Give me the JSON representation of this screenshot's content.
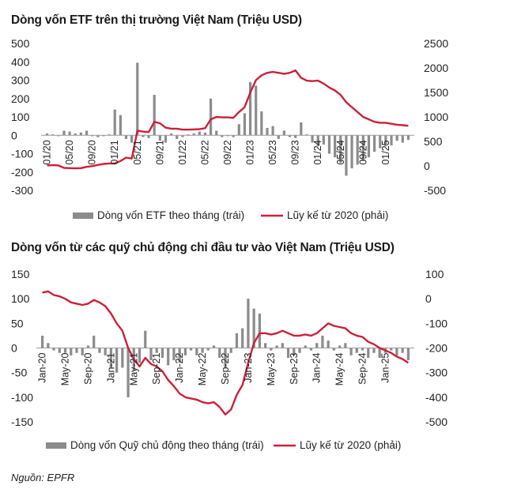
{
  "source": "Nguồn: EPFR",
  "chart_data": [
    {
      "type": "bar",
      "title": "Dòng vốn ETF trên thị trường Việt Nam (Triệu USD)",
      "ylim": [
        -300,
        500
      ],
      "y_ticks": [
        500,
        400,
        300,
        200,
        100,
        0,
        -100,
        -200,
        -300
      ],
      "y2lim": [
        -500,
        2500
      ],
      "y2_ticks": [
        2500,
        2000,
        1500,
        1000,
        500,
        0,
        -500
      ],
      "x_tick_labels": [
        "01/20",
        "05/20",
        "09/20",
        "01/21",
        "05/21",
        "09/21",
        "01/22",
        "05/22",
        "09/22",
        "01/23",
        "05/23",
        "09/23",
        "01/24",
        "05/24",
        "09/24",
        "01/25"
      ],
      "series": [
        {
          "name": "Dòng vốn ETF theo tháng (trái)",
          "axis": "left",
          "values": [
            10,
            5,
            -5,
            25,
            20,
            10,
            15,
            25,
            -5,
            -10,
            -5,
            5,
            140,
            110,
            -20,
            -40,
            395,
            -10,
            -15,
            220,
            -30,
            -40,
            10,
            -20,
            -10,
            5,
            10,
            20,
            15,
            200,
            25,
            -10,
            -5,
            -10,
            60,
            120,
            290,
            270,
            130,
            40,
            50,
            -20,
            25,
            -10,
            -15,
            70,
            5,
            -40,
            -60,
            -50,
            -100,
            -120,
            -150,
            -220,
            -180,
            -160,
            -140,
            -120,
            -90,
            -70,
            -60,
            -55,
            -30,
            -40,
            -25
          ]
        },
        {
          "name": "Lũy kế từ 2020 (phải)",
          "axis": "right",
          "values": [
            10,
            15,
            10,
            -40,
            -45,
            -50,
            -45,
            -20,
            -5,
            20,
            40,
            50,
            50,
            100,
            170,
            150,
            720,
            700,
            690,
            900,
            870,
            780,
            760,
            760,
            740,
            740,
            745,
            750,
            770,
            950,
            1000,
            990,
            990,
            980,
            1100,
            1200,
            1500,
            1750,
            1850,
            1900,
            1920,
            1900,
            1880,
            1900,
            1950,
            1800,
            1740,
            1730,
            1740,
            1680,
            1600,
            1540,
            1450,
            1300,
            1200,
            1100,
            1000,
            950,
            900,
            880,
            880,
            860,
            840,
            830,
            820
          ]
        }
      ]
    },
    {
      "type": "bar",
      "title": "Dòng vốn từ các quỹ chủ động chỉ đầu tư vào Việt Nam (Triệu USD)",
      "ylim": [
        -150,
        150
      ],
      "y_ticks": [
        150,
        100,
        50,
        0,
        -50,
        -100,
        -150
      ],
      "y2lim": [
        -500,
        100
      ],
      "y2_ticks": [
        100,
        0,
        -100,
        -200,
        -300,
        -400,
        -500
      ],
      "x_tick_labels": [
        "Jan-20",
        "May-20",
        "Sep-20",
        "Jan-21",
        "May-21",
        "Sep-21",
        "Jan-22",
        "May-22",
        "Sep-22",
        "Jan-23",
        "May-23",
        "Sep-23",
        "Jan-24",
        "May-24",
        "Sep-24",
        "Jan-25"
      ],
      "series": [
        {
          "name": "Dòng vốn Quỹ chủ động theo tháng (trái)",
          "axis": "left",
          "values": [
            25,
            10,
            -5,
            -10,
            -10,
            -15,
            -10,
            -15,
            5,
            25,
            -10,
            -15,
            -40,
            -50,
            -40,
            -100,
            -45,
            -30,
            35,
            -25,
            -10,
            -20,
            -35,
            -25,
            -30,
            -15,
            -5,
            -15,
            -10,
            -5,
            5,
            -20,
            -40,
            -10,
            30,
            40,
            100,
            80,
            70,
            10,
            -5,
            5,
            10,
            -20,
            -15,
            -10,
            5,
            -5,
            10,
            25,
            15,
            -5,
            5,
            10,
            -15,
            -10,
            -5,
            -20,
            -10,
            -20,
            -10,
            -5,
            -15,
            -10,
            -25
          ]
        },
        {
          "name": "Lũy kế từ 2020 (phải)",
          "axis": "right",
          "values": [
            25,
            30,
            15,
            10,
            0,
            -15,
            -20,
            -25,
            -20,
            -5,
            -15,
            -30,
            -60,
            -100,
            -130,
            -200,
            -245,
            -275,
            -240,
            -265,
            -275,
            -295,
            -330,
            -355,
            -385,
            -400,
            -405,
            -410,
            -420,
            -425,
            -420,
            -440,
            -470,
            -450,
            -390,
            -350,
            -260,
            -180,
            -140,
            -140,
            -145,
            -140,
            -130,
            -140,
            -150,
            -150,
            -145,
            -150,
            -140,
            -120,
            -100,
            -110,
            -115,
            -120,
            -140,
            -150,
            -155,
            -175,
            -185,
            -200,
            -210,
            -220,
            -235,
            -245,
            -260
          ]
        }
      ]
    }
  ]
}
